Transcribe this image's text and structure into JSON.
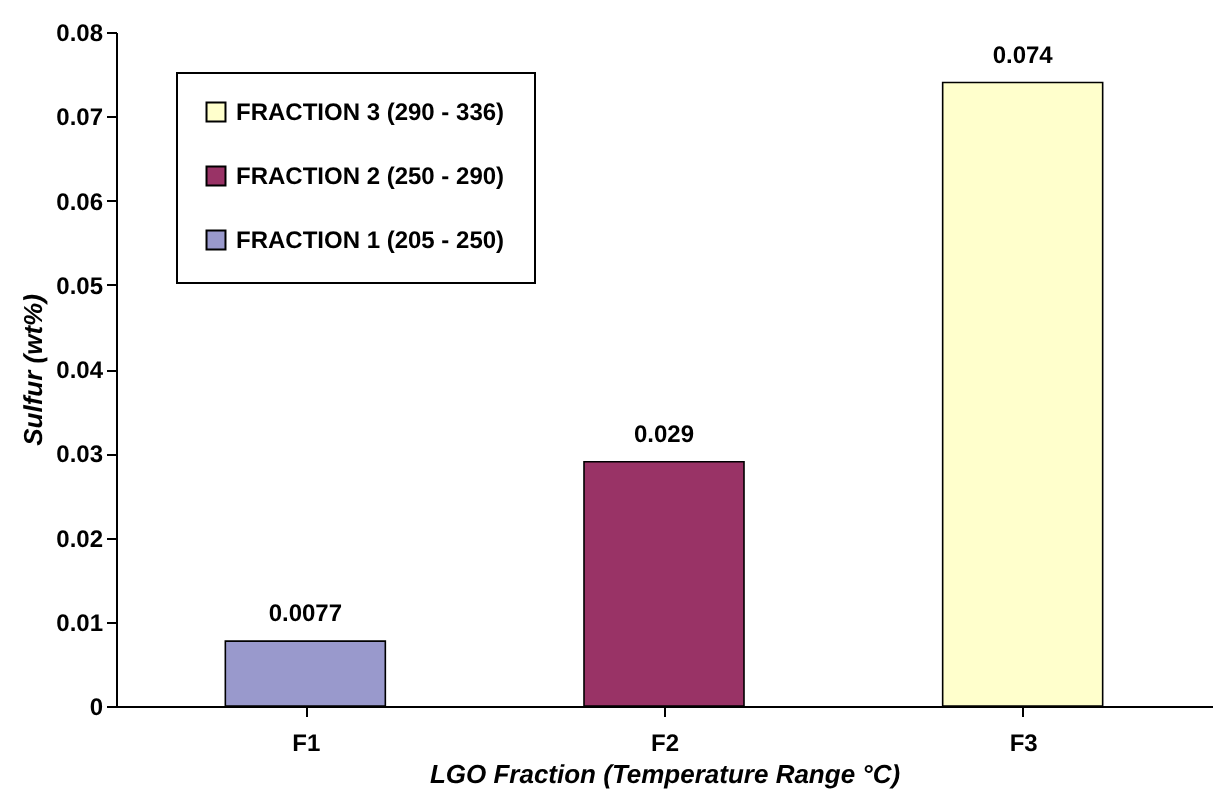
{
  "chart_data": {
    "type": "bar",
    "xlabel": "LGO Fraction (Temperature Range °C)",
    "ylabel": "Sulfur (wt%)",
    "categories": [
      "F1",
      "F2",
      "F3"
    ],
    "series": [
      {
        "name": "FRACTION 3 (290 - 336)",
        "color": "#ffffcc",
        "values": [
          null,
          null,
          0.074
        ]
      },
      {
        "name": "FRACTION 2 (250 - 290)",
        "color": "#993366",
        "values": [
          null,
          0.029,
          null
        ]
      },
      {
        "name": "FRACTION 1 (205 - 250)",
        "color": "#9999cc",
        "values": [
          0.0077,
          null,
          null
        ]
      }
    ],
    "ylim": [
      0,
      0.08
    ],
    "yticks": [
      0,
      0.01,
      0.02,
      0.03,
      0.04,
      0.05,
      0.06,
      0.07,
      0.08
    ],
    "data_labels": true,
    "legend": "top left",
    "grid": false
  }
}
